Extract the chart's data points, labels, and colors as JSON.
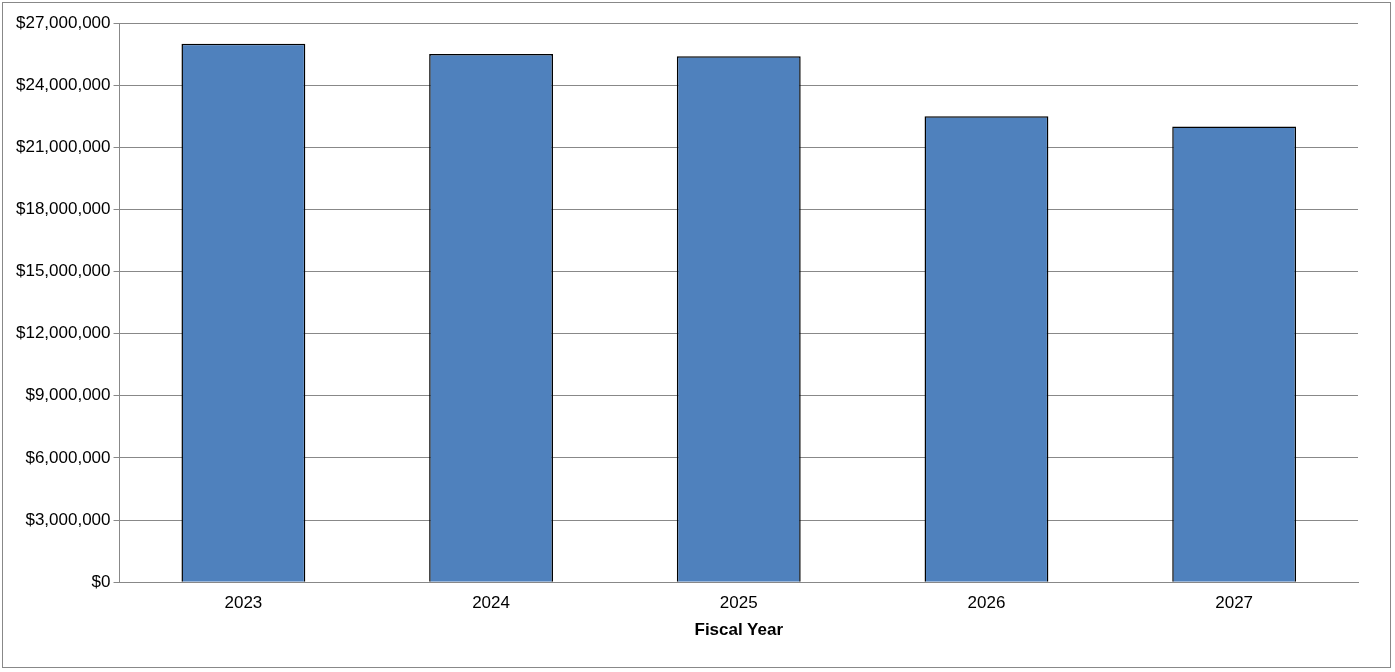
{
  "chart_data": {
    "type": "bar",
    "xlabel": "Fiscal Year",
    "categories": [
      "2023",
      "2024",
      "2025",
      "2026",
      "2027"
    ],
    "values": [
      26000000,
      25500000,
      25400000,
      22500000,
      22000000
    ],
    "color": "#4f81bd",
    "ylim": [
      0,
      27000000
    ],
    "yticks": [
      {
        "value": 0,
        "label": "$0"
      },
      {
        "value": 3000000,
        "label": "$3,000,000"
      },
      {
        "value": 6000000,
        "label": "$6,000,000"
      },
      {
        "value": 9000000,
        "label": "$9,000,000"
      },
      {
        "value": 12000000,
        "label": "$12,000,000"
      },
      {
        "value": 15000000,
        "label": "$15,000,000"
      },
      {
        "value": 18000000,
        "label": "$18,000,000"
      },
      {
        "value": 21000000,
        "label": "$21,000,000"
      },
      {
        "value": 24000000,
        "label": "$24,000,000"
      },
      {
        "value": 27000000,
        "label": "$27,000,000"
      }
    ],
    "grid": "y"
  }
}
